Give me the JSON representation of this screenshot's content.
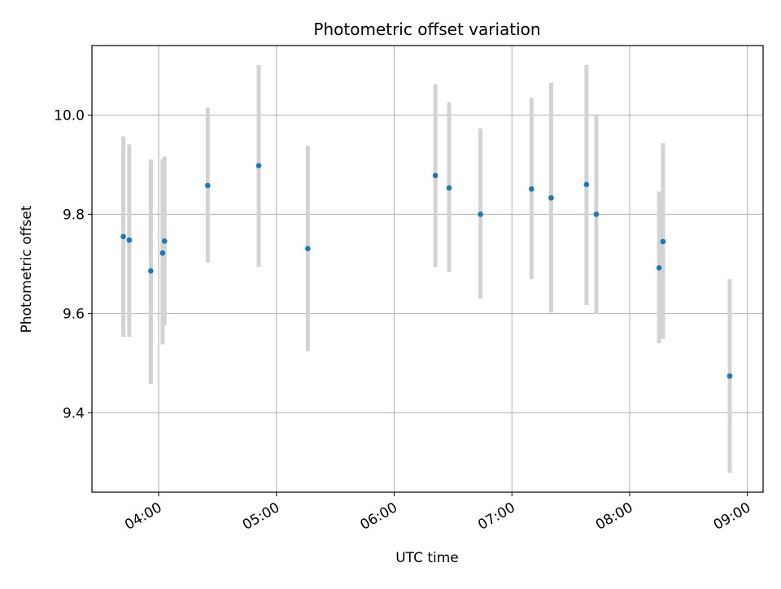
{
  "chart_data": {
    "type": "scatter",
    "title": "Photometric offset variation",
    "xlabel": "UTC time",
    "ylabel": "Photometric offset",
    "x_unit": "hours (UTC)",
    "xlim": [
      "03:26",
      "09:08"
    ],
    "ylim": [
      9.24,
      10.14
    ],
    "x_ticks": [
      {
        "label": "04:00",
        "value": "04:00"
      },
      {
        "label": "05:00",
        "value": "05:00"
      },
      {
        "label": "06:00",
        "value": "06:00"
      },
      {
        "label": "07:00",
        "value": "07:00"
      },
      {
        "label": "08:00",
        "value": "08:00"
      },
      {
        "label": "09:00",
        "value": "09:00"
      }
    ],
    "y_ticks": [
      {
        "label": "9.4",
        "value": 9.4
      },
      {
        "label": "9.6",
        "value": 9.6
      },
      {
        "label": "9.8",
        "value": 9.8
      },
      {
        "label": "10.0",
        "value": 10.0
      }
    ],
    "grid": true,
    "marker_color": "#1f77b4",
    "errorbar_color": "#d3d3d3",
    "series": [
      {
        "points": [
          {
            "time": "03:42",
            "y": 9.755,
            "err_low": 9.553,
            "err_high": 9.957
          },
          {
            "time": "03:45",
            "y": 9.748,
            "err_low": 9.553,
            "err_high": 9.941
          },
          {
            "time": "03:56",
            "y": 9.686,
            "err_low": 9.458,
            "err_high": 9.911
          },
          {
            "time": "04:02",
            "y": 9.722,
            "err_low": 9.538,
            "err_high": 9.911
          },
          {
            "time": "04:03",
            "y": 9.746,
            "err_low": 9.576,
            "err_high": 9.916
          },
          {
            "time": "04:25",
            "y": 9.858,
            "err_low": 9.703,
            "err_high": 10.015
          },
          {
            "time": "04:51",
            "y": 9.898,
            "err_low": 9.694,
            "err_high": 10.101
          },
          {
            "time": "05:16",
            "y": 9.731,
            "err_low": 9.524,
            "err_high": 9.938
          },
          {
            "time": "06:21",
            "y": 9.878,
            "err_low": 9.694,
            "err_high": 10.062
          },
          {
            "time": "06:28",
            "y": 9.853,
            "err_low": 9.684,
            "err_high": 10.026
          },
          {
            "time": "06:44",
            "y": 9.8,
            "err_low": 9.63,
            "err_high": 9.973
          },
          {
            "time": "07:10",
            "y": 9.851,
            "err_low": 9.669,
            "err_high": 10.035
          },
          {
            "time": "07:20",
            "y": 9.833,
            "err_low": 9.602,
            "err_high": 10.065
          },
          {
            "time": "07:38",
            "y": 9.86,
            "err_low": 9.617,
            "err_high": 10.101
          },
          {
            "time": "07:43",
            "y": 9.8,
            "err_low": 9.599,
            "err_high": 10.0
          },
          {
            "time": "08:15",
            "y": 9.692,
            "err_low": 9.54,
            "err_high": 9.846
          },
          {
            "time": "08:17",
            "y": 9.745,
            "err_low": 9.549,
            "err_high": 9.943
          },
          {
            "time": "08:51",
            "y": 9.474,
            "err_low": 9.279,
            "err_high": 9.669
          }
        ]
      }
    ]
  }
}
